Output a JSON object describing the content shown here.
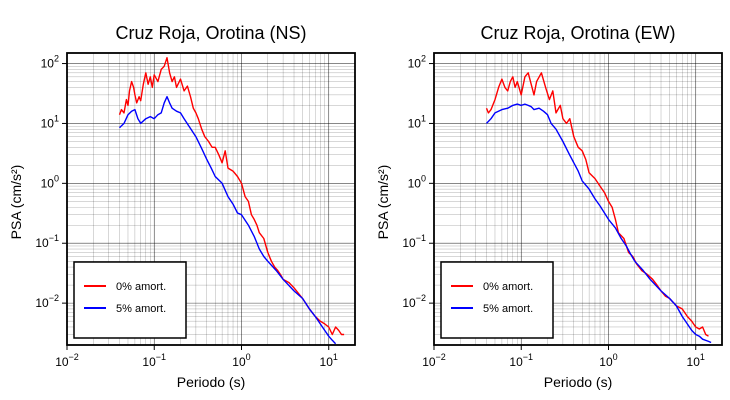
{
  "chart_data": [
    {
      "type": "line",
      "title": "Cruz Roja, Orotina (NS)",
      "xlabel": "Periodo (s)",
      "ylabel": "PSA (cm/s²)",
      "x_scale": "log",
      "y_scale": "log",
      "xlim": [
        0.01,
        20
      ],
      "ylim": [
        0.002,
        150
      ],
      "x_ticks": [
        {
          "value": 0.01,
          "base": "10",
          "exp": "−2"
        },
        {
          "value": 0.1,
          "base": "10",
          "exp": "−1"
        },
        {
          "value": 1,
          "base": "10",
          "exp": "0"
        },
        {
          "value": 10,
          "base": "10",
          "exp": "1"
        }
      ],
      "y_ticks": [
        {
          "value": 0.01,
          "base": "10",
          "exp": "−2"
        },
        {
          "value": 0.1,
          "base": "10",
          "exp": "−1"
        },
        {
          "value": 1,
          "base": "10",
          "exp": "0"
        },
        {
          "value": 10,
          "base": "10",
          "exp": "1"
        },
        {
          "value": 100,
          "base": "10",
          "exp": "2"
        }
      ],
      "grid": true,
      "legend_position": "bottom-left",
      "series": [
        {
          "name": "0% amort.",
          "color": "#ff0000",
          "points": [
            [
              0.04,
              14
            ],
            [
              0.042,
              17
            ],
            [
              0.045,
              15
            ],
            [
              0.048,
              25
            ],
            [
              0.05,
              20
            ],
            [
              0.052,
              35
            ],
            [
              0.055,
              50
            ],
            [
              0.058,
              40
            ],
            [
              0.06,
              30
            ],
            [
              0.063,
              22
            ],
            [
              0.067,
              28
            ],
            [
              0.07,
              24
            ],
            [
              0.075,
              45
            ],
            [
              0.08,
              70
            ],
            [
              0.085,
              45
            ],
            [
              0.09,
              60
            ],
            [
              0.095,
              40
            ],
            [
              0.1,
              65
            ],
            [
              0.11,
              50
            ],
            [
              0.12,
              80
            ],
            [
              0.13,
              90
            ],
            [
              0.14,
              125
            ],
            [
              0.15,
              70
            ],
            [
              0.16,
              50
            ],
            [
              0.17,
              60
            ],
            [
              0.18,
              40
            ],
            [
              0.2,
              55
            ],
            [
              0.22,
              35
            ],
            [
              0.24,
              42
            ],
            [
              0.26,
              28
            ],
            [
              0.28,
              18
            ],
            [
              0.3,
              15
            ],
            [
              0.32,
              12
            ],
            [
              0.35,
              8
            ],
            [
              0.38,
              6
            ],
            [
              0.42,
              5
            ],
            [
              0.46,
              4
            ],
            [
              0.5,
              4
            ],
            [
              0.55,
              3
            ],
            [
              0.6,
              2.2
            ],
            [
              0.65,
              3.5
            ],
            [
              0.7,
              1.8
            ],
            [
              0.8,
              1.6
            ],
            [
              0.9,
              1.3
            ],
            [
              1.0,
              1.0
            ],
            [
              1.1,
              0.6
            ],
            [
              1.2,
              0.5
            ],
            [
              1.3,
              0.3
            ],
            [
              1.4,
              0.25
            ],
            [
              1.5,
              0.2
            ],
            [
              1.6,
              0.15
            ],
            [
              1.8,
              0.12
            ],
            [
              2.0,
              0.07
            ],
            [
              2.2,
              0.05
            ],
            [
              2.4,
              0.04
            ],
            [
              2.6,
              0.035
            ],
            [
              2.8,
              0.03
            ],
            [
              3.0,
              0.025
            ],
            [
              3.5,
              0.022
            ],
            [
              4.0,
              0.018
            ],
            [
              5.0,
              0.012
            ],
            [
              6.0,
              0.008
            ],
            [
              7.0,
              0.006
            ],
            [
              8.0,
              0.005
            ],
            [
              9.0,
              0.0045
            ],
            [
              10,
              0.004
            ],
            [
              11,
              0.003
            ],
            [
              12,
              0.004
            ],
            [
              13,
              0.0035
            ],
            [
              14,
              0.003
            ],
            [
              15,
              0.003
            ]
          ]
        },
        {
          "name": "5% amort.",
          "color": "#0000ff",
          "points": [
            [
              0.04,
              8.5
            ],
            [
              0.045,
              10
            ],
            [
              0.05,
              14
            ],
            [
              0.055,
              16
            ],
            [
              0.06,
              17
            ],
            [
              0.065,
              12
            ],
            [
              0.07,
              10
            ],
            [
              0.08,
              12
            ],
            [
              0.09,
              13
            ],
            [
              0.1,
              12
            ],
            [
              0.11,
              14
            ],
            [
              0.12,
              15
            ],
            [
              0.13,
              22
            ],
            [
              0.14,
              28
            ],
            [
              0.15,
              22
            ],
            [
              0.16,
              18
            ],
            [
              0.18,
              16
            ],
            [
              0.2,
              15
            ],
            [
              0.22,
              12
            ],
            [
              0.25,
              9
            ],
            [
              0.3,
              6
            ],
            [
              0.35,
              3.8
            ],
            [
              0.4,
              2.5
            ],
            [
              0.45,
              1.8
            ],
            [
              0.5,
              1.3
            ],
            [
              0.6,
              1.0
            ],
            [
              0.7,
              0.6
            ],
            [
              0.8,
              0.45
            ],
            [
              0.9,
              0.32
            ],
            [
              1.0,
              0.3
            ],
            [
              1.2,
              0.2
            ],
            [
              1.4,
              0.13
            ],
            [
              1.6,
              0.08
            ],
            [
              1.8,
              0.06
            ],
            [
              2.0,
              0.05
            ],
            [
              2.5,
              0.035
            ],
            [
              3.0,
              0.025
            ],
            [
              4.0,
              0.016
            ],
            [
              5.0,
              0.012
            ],
            [
              6.0,
              0.008
            ],
            [
              7.0,
              0.006
            ],
            [
              8.0,
              0.0045
            ],
            [
              9.0,
              0.0035
            ],
            [
              10,
              0.0028
            ],
            [
              11,
              0.0024
            ],
            [
              12,
              0.0021
            ]
          ]
        }
      ]
    },
    {
      "type": "line",
      "title": "Cruz Roja, Orotina (EW)",
      "xlabel": "Periodo (s)",
      "ylabel": "PSA (cm/s²)",
      "x_scale": "log",
      "y_scale": "log",
      "xlim": [
        0.01,
        20
      ],
      "ylim": [
        0.002,
        150
      ],
      "x_ticks": [
        {
          "value": 0.01,
          "base": "10",
          "exp": "−2"
        },
        {
          "value": 0.1,
          "base": "10",
          "exp": "−1"
        },
        {
          "value": 1,
          "base": "10",
          "exp": "0"
        },
        {
          "value": 10,
          "base": "10",
          "exp": "1"
        }
      ],
      "y_ticks": [
        {
          "value": 0.01,
          "base": "10",
          "exp": "−2"
        },
        {
          "value": 0.1,
          "base": "10",
          "exp": "−1"
        },
        {
          "value": 1,
          "base": "10",
          "exp": "0"
        },
        {
          "value": 10,
          "base": "10",
          "exp": "1"
        },
        {
          "value": 100,
          "base": "10",
          "exp": "2"
        }
      ],
      "grid": true,
      "legend_position": "bottom-left",
      "series": [
        {
          "name": "0% amort.",
          "color": "#ff0000",
          "points": [
            [
              0.04,
              18
            ],
            [
              0.042,
              15
            ],
            [
              0.045,
              17
            ],
            [
              0.05,
              25
            ],
            [
              0.055,
              40
            ],
            [
              0.06,
              55
            ],
            [
              0.065,
              40
            ],
            [
              0.07,
              35
            ],
            [
              0.075,
              50
            ],
            [
              0.08,
              60
            ],
            [
              0.085,
              40
            ],
            [
              0.09,
              50
            ],
            [
              0.1,
              30
            ],
            [
              0.11,
              60
            ],
            [
              0.12,
              70
            ],
            [
              0.13,
              45
            ],
            [
              0.14,
              30
            ],
            [
              0.15,
              50
            ],
            [
              0.17,
              70
            ],
            [
              0.19,
              40
            ],
            [
              0.21,
              25
            ],
            [
              0.23,
              35
            ],
            [
              0.25,
              15
            ],
            [
              0.28,
              20
            ],
            [
              0.3,
              12
            ],
            [
              0.33,
              10
            ],
            [
              0.36,
              12
            ],
            [
              0.4,
              6
            ],
            [
              0.45,
              4
            ],
            [
              0.5,
              3.5
            ],
            [
              0.55,
              2.5
            ],
            [
              0.6,
              1.5
            ],
            [
              0.7,
              1.2
            ],
            [
              0.8,
              0.9
            ],
            [
              0.9,
              0.7
            ],
            [
              1.0,
              0.5
            ],
            [
              1.1,
              0.4
            ],
            [
              1.2,
              0.25
            ],
            [
              1.3,
              0.15
            ],
            [
              1.5,
              0.12
            ],
            [
              1.7,
              0.07
            ],
            [
              1.9,
              0.06
            ],
            [
              2.1,
              0.045
            ],
            [
              2.4,
              0.035
            ],
            [
              2.8,
              0.03
            ],
            [
              3.2,
              0.025
            ],
            [
              3.6,
              0.02
            ],
            [
              4.0,
              0.016
            ],
            [
              4.5,
              0.013
            ],
            [
              5.0,
              0.012
            ],
            [
              6.0,
              0.009
            ],
            [
              7.0,
              0.008
            ],
            [
              8.0,
              0.006
            ],
            [
              9.0,
              0.005
            ],
            [
              10,
              0.004
            ],
            [
              11,
              0.0037
            ],
            [
              12,
              0.004
            ],
            [
              13,
              0.003
            ],
            [
              14,
              0.0028
            ]
          ]
        },
        {
          "name": "5% amort.",
          "color": "#0000ff",
          "points": [
            [
              0.04,
              10
            ],
            [
              0.045,
              12
            ],
            [
              0.05,
              15
            ],
            [
              0.06,
              17
            ],
            [
              0.07,
              18
            ],
            [
              0.08,
              20
            ],
            [
              0.09,
              21
            ],
            [
              0.1,
              20
            ],
            [
              0.11,
              21
            ],
            [
              0.12,
              20
            ],
            [
              0.13,
              19
            ],
            [
              0.14,
              17
            ],
            [
              0.16,
              18
            ],
            [
              0.18,
              16
            ],
            [
              0.2,
              14
            ],
            [
              0.22,
              10
            ],
            [
              0.25,
              8
            ],
            [
              0.3,
              5
            ],
            [
              0.35,
              3.2
            ],
            [
              0.4,
              2.2
            ],
            [
              0.45,
              1.6
            ],
            [
              0.5,
              1.1
            ],
            [
              0.6,
              0.8
            ],
            [
              0.7,
              0.55
            ],
            [
              0.8,
              0.42
            ],
            [
              0.9,
              0.32
            ],
            [
              1.0,
              0.25
            ],
            [
              1.2,
              0.18
            ],
            [
              1.4,
              0.12
            ],
            [
              1.6,
              0.09
            ],
            [
              1.8,
              0.065
            ],
            [
              2.0,
              0.05
            ],
            [
              2.5,
              0.035
            ],
            [
              3.0,
              0.025
            ],
            [
              4.0,
              0.016
            ],
            [
              5.0,
              0.012
            ],
            [
              6.0,
              0.009
            ],
            [
              7.0,
              0.006
            ],
            [
              8.0,
              0.0045
            ],
            [
              9.0,
              0.0035
            ],
            [
              10,
              0.003
            ],
            [
              11,
              0.0028
            ],
            [
              12,
              0.0025
            ],
            [
              14,
              0.0023
            ],
            [
              15,
              0.0022
            ]
          ]
        }
      ]
    }
  ]
}
